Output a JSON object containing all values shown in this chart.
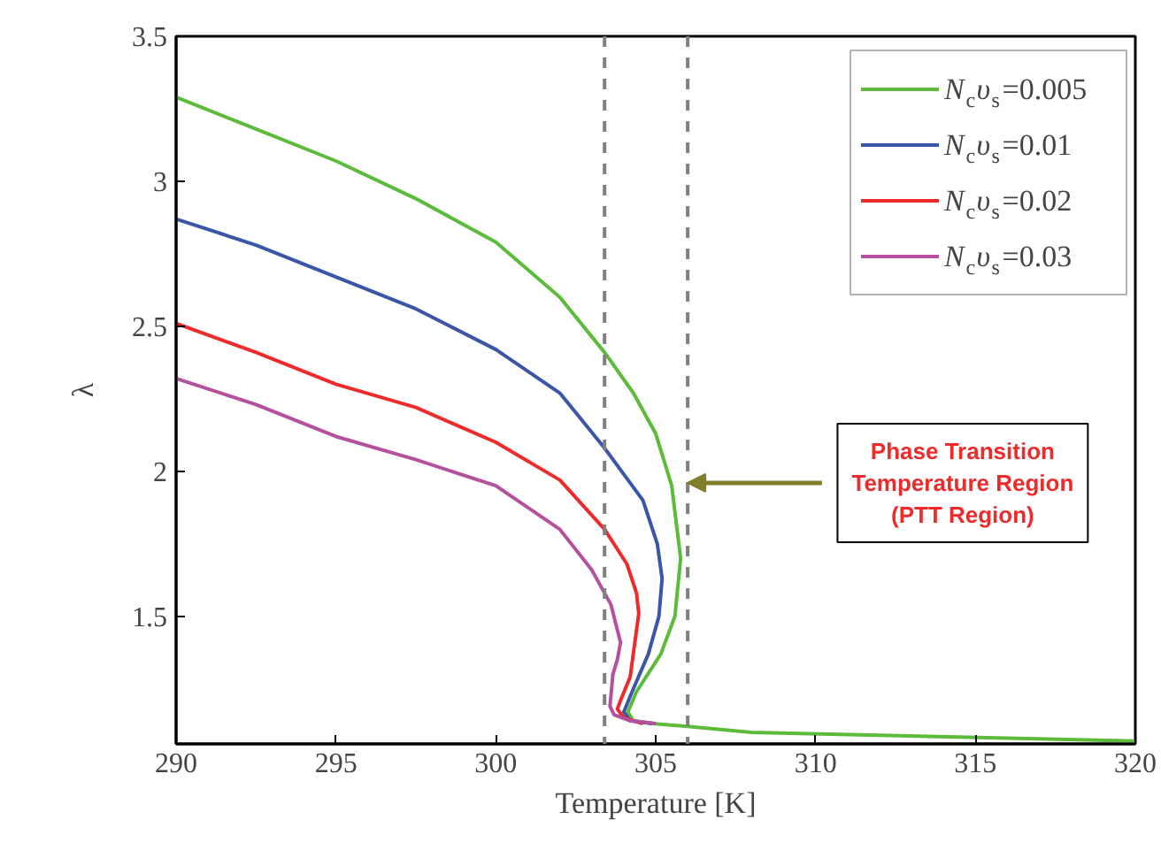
{
  "chart_data": {
    "type": "line",
    "xlabel": "Temperature [K]",
    "ylabel": "λ",
    "xlim": [
      290,
      320
    ],
    "ylim": [
      1.06,
      3.5
    ],
    "xticks": [
      290,
      295,
      300,
      305,
      310,
      315,
      320
    ],
    "yticks": [
      1.5,
      2.0,
      2.5,
      3.0,
      3.5
    ],
    "grid": false,
    "legend": "top right",
    "line_style": "solid",
    "marker": "none",
    "series": [
      {
        "name": "N$_{c}$υ$_{s}$=0.005",
        "color": "#5dbb3b",
        "x": [
          290,
          292.5,
          295,
          297.5,
          300,
          302,
          303.4,
          304.3,
          305,
          305.5,
          305.78,
          305.6,
          305.16,
          304.4,
          304.13,
          304.3,
          304.9,
          306,
          308,
          312,
          316,
          320
        ],
        "values": [
          3.29,
          3.18,
          3.07,
          2.94,
          2.79,
          2.6,
          2.41,
          2.27,
          2.13,
          1.95,
          1.7,
          1.5,
          1.37,
          1.24,
          1.17,
          1.14,
          1.13,
          1.12,
          1.1,
          1.09,
          1.08,
          1.07
        ]
      },
      {
        "name": "N$_{c}$υ$_{s}$=0.01",
        "color": "#3a56a6",
        "x": [
          290,
          292.5,
          295,
          297.5,
          300,
          302,
          303.4,
          304.6,
          305.05,
          305.2,
          305.1,
          304.77,
          304.3,
          304.0,
          304.2,
          304.9
        ],
        "values": [
          2.87,
          2.78,
          2.67,
          2.56,
          2.42,
          2.27,
          2.08,
          1.9,
          1.75,
          1.63,
          1.5,
          1.37,
          1.25,
          1.17,
          1.14,
          1.13
        ]
      },
      {
        "name": "N$_{c}$υ$_{s}$=0.02",
        "color": "#ee2a2a",
        "x": [
          290,
          292.5,
          295,
          297.5,
          300,
          302,
          303.4,
          304.1,
          304.4,
          304.47,
          304.2,
          303.9,
          303.8,
          304.0,
          304.6
        ],
        "values": [
          2.51,
          2.41,
          2.3,
          2.22,
          2.1,
          1.97,
          1.8,
          1.68,
          1.58,
          1.51,
          1.29,
          1.21,
          1.18,
          1.15,
          1.13
        ]
      },
      {
        "name": "N$_{c}$υ$_{s}$=0.03",
        "color": "#b5509f",
        "x": [
          290,
          292.5,
          295,
          297.5,
          300,
          302,
          303.0,
          303.6,
          303.9,
          303.8,
          303.66,
          303.57,
          303.7,
          304.2,
          305
        ],
        "values": [
          2.32,
          2.23,
          2.12,
          2.04,
          1.95,
          1.8,
          1.66,
          1.54,
          1.41,
          1.35,
          1.3,
          1.19,
          1.16,
          1.14,
          1.13
        ]
      }
    ],
    "ref_lines": [
      {
        "axis": "x",
        "value": 303.4,
        "color": "#808080",
        "line_style": "dashed"
      },
      {
        "axis": "x",
        "value": 306.0,
        "color": "#808080",
        "line_style": "dashed"
      }
    ],
    "annotations": [
      {
        "text": "Phase Transition\nTemperature Region\n(PTT Region)",
        "x": 306.0,
        "y": 1.96
      }
    ]
  }
}
